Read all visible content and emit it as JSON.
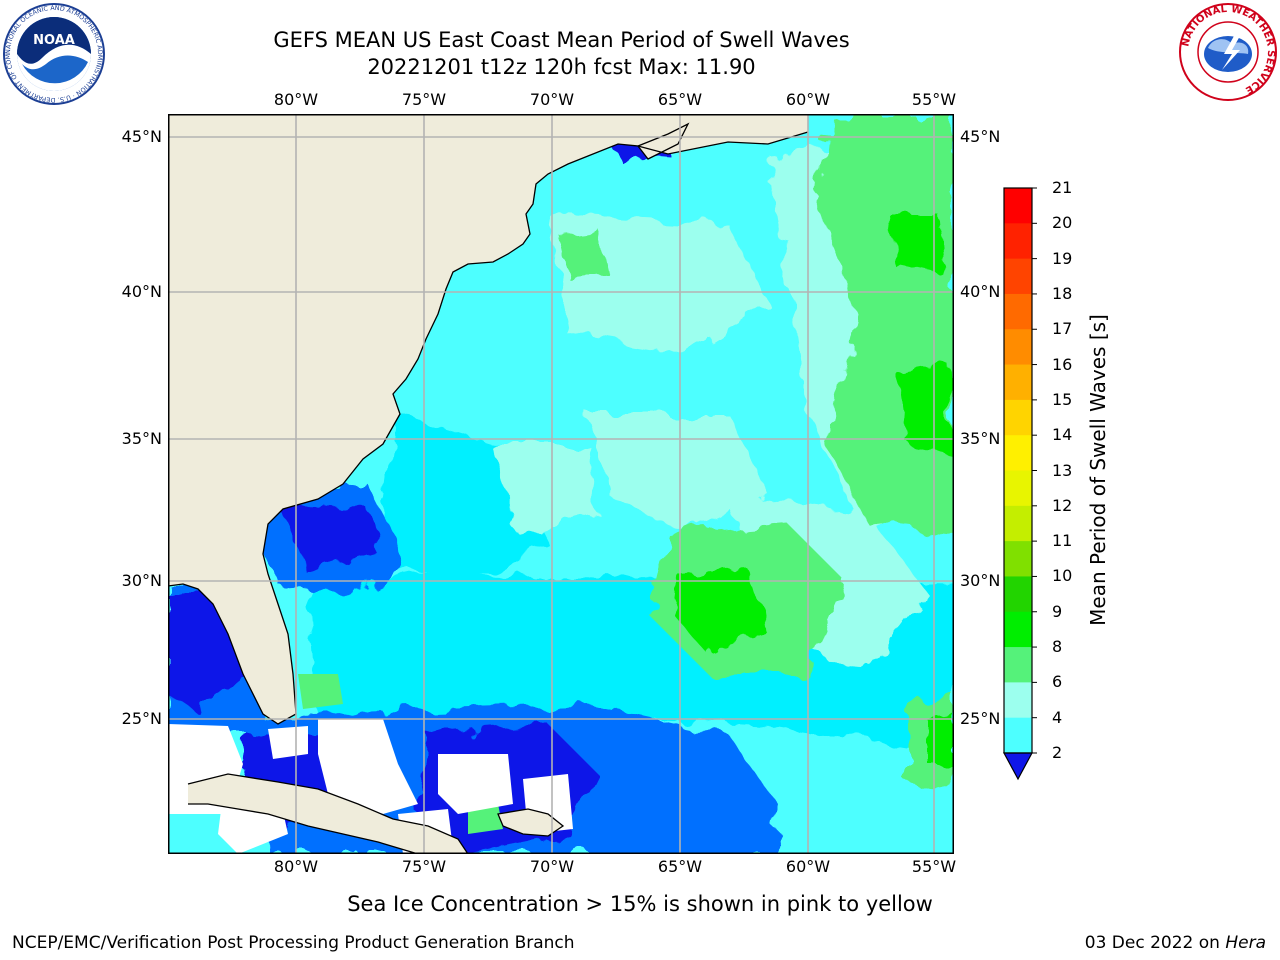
{
  "title": {
    "line1": "GEFS MEAN US East Coast Mean Period of Swell Waves",
    "line2": "20221201 t12z 120h fcst   Max: 11.90"
  },
  "axes": {
    "lon_labels": [
      "80°W",
      "75°W",
      "70°W",
      "65°W",
      "60°W",
      "55°W"
    ],
    "lat_labels": [
      "45°N",
      "40°N",
      "35°N",
      "30°N",
      "25°N"
    ]
  },
  "colorbar": {
    "label": "Mean Period of Swell Waves [s]",
    "ticks": [
      "21",
      "20",
      "19",
      "18",
      "17",
      "16",
      "15",
      "14",
      "13",
      "12",
      "11",
      "10",
      "9",
      "8",
      "6",
      "4",
      "2"
    ],
    "colors": [
      "#ff0000",
      "#ff2200",
      "#ff4400",
      "#ff6a00",
      "#ff8c00",
      "#ffb000",
      "#ffd400",
      "#fff000",
      "#e8f500",
      "#c4ee00",
      "#80e000",
      "#22d400",
      "#00ee00",
      "#55f27a",
      "#9cffee",
      "#4dffff",
      "#00f0ff",
      "#00b4ff",
      "#0070ff"
    ],
    "extend_color": "#0f16e8"
  },
  "legend": {
    "colors": {
      "land": "#efecdb",
      "ice_free_white": "#ffffff",
      "grid": "#b3b3b3",
      "deep_blue": "#0f16e8",
      "blue": "#0070ff",
      "cyan": "#00f0ff",
      "light_cyan": "#4dffff",
      "pale_cyan": "#9cffee",
      "light_green": "#55f27a",
      "green": "#00ee00"
    }
  },
  "note": "Sea Ice Concentration > 15% is shown in pink to yellow",
  "footer": {
    "left": "NCEP/EMC/Verification Post Processing Product Generation Branch",
    "right_date": "03 Dec 2022 on ",
    "right_host": "Hera"
  },
  "logos": {
    "noaa_text": "NOAA",
    "noaa_ring": "NATIONAL OCEANIC AND ATMOSPHERIC ADMINISTRATION · U.S. DEPARTMENT OF COMMERCE",
    "nws_ring": "NATIONAL WEATHER SERVICE"
  }
}
